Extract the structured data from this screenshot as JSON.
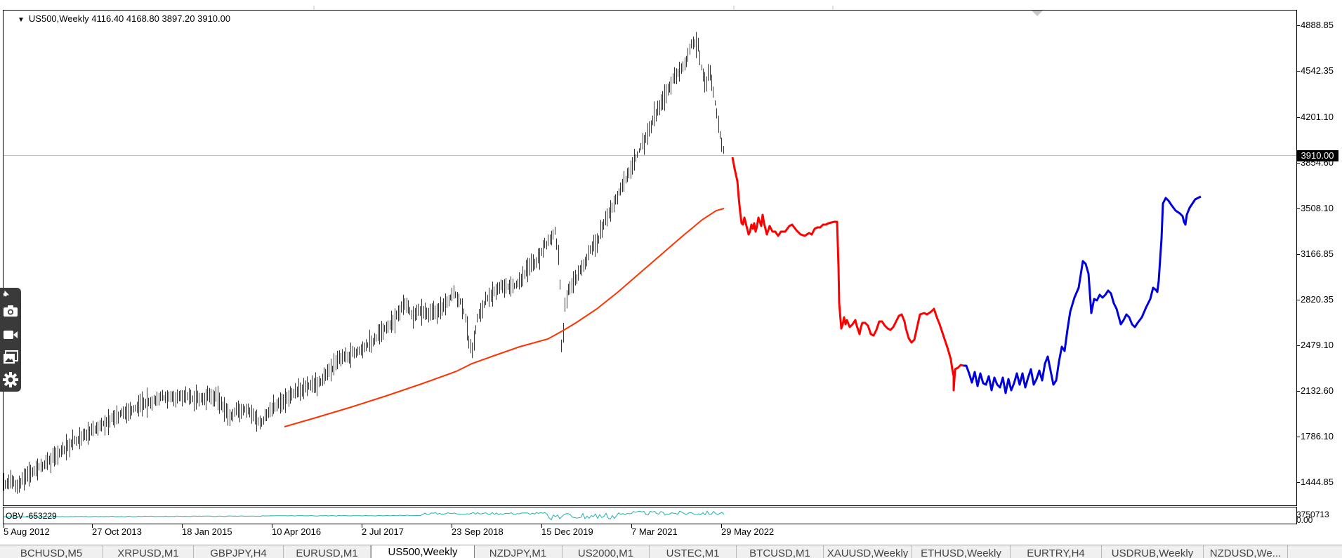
{
  "chart": {
    "title": "US500,Weekly  4116.40 4168.80 3897.20 3910.00",
    "current_price": "3910.00",
    "price_axis": [
      "4888.85",
      "4542.35",
      "4201.10",
      "3854.60",
      "3508.10",
      "3166.85",
      "2820.35",
      "2479.10",
      "2132.60",
      "1786.10",
      "1444.85"
    ],
    "time_axis": [
      "5 Aug 2012",
      "27 Oct 2013",
      "18 Jan 2015",
      "10 Apr 2016",
      "2 Jul 2017",
      "23 Sep 2018",
      "15 Dec 2019",
      "7 Mar 2021",
      "29 May 2022"
    ],
    "colors": {
      "price_bars": "#333333",
      "moving_average": "#ff3300",
      "forecast_red": "#ff0000",
      "forecast_blue": "#0000dd",
      "obv_line": "#20b2aa",
      "grid_line": "#c0c0c0"
    }
  },
  "obv": {
    "label": "OBV -653229",
    "scale_top": "3750713",
    "scale_bottom": "0.00"
  },
  "toolbar": {
    "buttons": [
      "camera-icon",
      "video-icon",
      "gallery-icon",
      "gear-icon"
    ]
  },
  "tabs": [
    {
      "label": "BCHUSD,M5"
    },
    {
      "label": "XRPUSD,M1"
    },
    {
      "label": "GBPJPY,H4"
    },
    {
      "label": "EURUSD,M1"
    },
    {
      "label": "US500,Weekly",
      "active": true
    },
    {
      "label": "NZDJPY,M1"
    },
    {
      "label": "US2000,M1"
    },
    {
      "label": "USTEC,M1"
    },
    {
      "label": "BTCUSD,M1"
    },
    {
      "label": "XAUUSD,Weekly"
    },
    {
      "label": "ETHUSD,Weekly"
    },
    {
      "label": "EURTRY,H4"
    },
    {
      "label": "USDRUB,Weekly"
    },
    {
      "label": "NZDUSD,We..."
    }
  ]
}
